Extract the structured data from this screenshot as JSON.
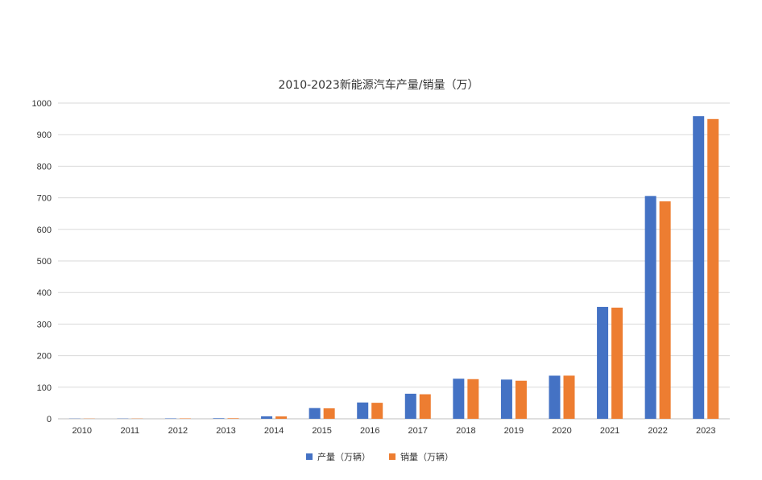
{
  "chart_data": {
    "type": "bar",
    "title": "2010-2023新能源汽车产量/销量（万）",
    "categories": [
      "2010",
      "2011",
      "2012",
      "2013",
      "2014",
      "2015",
      "2016",
      "2017",
      "2018",
      "2019",
      "2020",
      "2021",
      "2022",
      "2023"
    ],
    "series": [
      {
        "name": "产量（万辆）",
        "color": "#4472c4",
        "values": [
          0.7,
          0.8,
          1.3,
          1.8,
          7.8,
          34.0,
          51.7,
          79.4,
          127.0,
          124.2,
          136.6,
          354.5,
          705.8,
          958.7
        ]
      },
      {
        "name": "销量（万辆）",
        "color": "#ed7d31",
        "values": [
          0.7,
          0.8,
          1.3,
          1.8,
          7.5,
          33.1,
          50.7,
          77.7,
          125.6,
          120.6,
          136.7,
          352.1,
          688.7,
          949.5
        ]
      }
    ],
    "yticks": [
      "0",
      "100",
      "200",
      "300",
      "400",
      "500",
      "600",
      "700",
      "800",
      "900",
      "1000"
    ],
    "ylim": [
      0,
      1000
    ],
    "grid": true,
    "legend_position": "bottom"
  }
}
